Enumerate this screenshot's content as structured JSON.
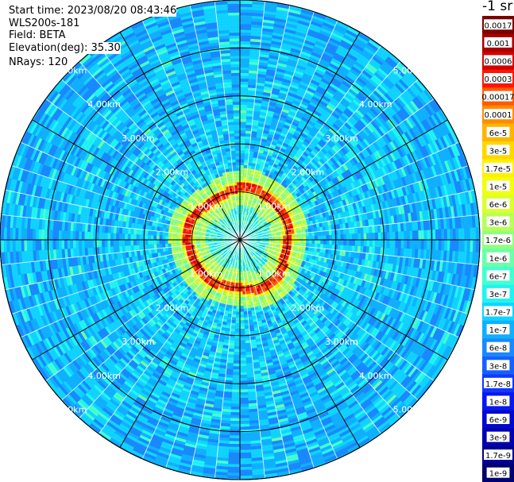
{
  "header": {
    "start_time": "Start time: 2023/08/20 08:43:46",
    "instrument": "WLS200s-181",
    "field": "Field: BETA",
    "elevation": "Elevation(deg): 35.30",
    "nrays": "NRays: 120"
  },
  "colorbar": {
    "unit_label": "-1 sr",
    "labels": [
      "0.0017",
      "0.001",
      "0.0006",
      "0.0003",
      "0.00017",
      "0.0001",
      "6e-5",
      "3e-5",
      "1.7e-5",
      "1e-5",
      "6e-6",
      "3e-6",
      "1.7e-6",
      "1e-6",
      "6e-7",
      "3e-7",
      "1.7e-7",
      "1e-7",
      "6e-8",
      "3e-8",
      "1.7e-8",
      "1e-8",
      "6e-9",
      "3e-9",
      "1.7e-9",
      "1e-9"
    ],
    "colors": [
      "#7a0000",
      "#a80000",
      "#d40000",
      "#ff1500",
      "#ff5a00",
      "#ff8c00",
      "#ffb400",
      "#ffd800",
      "#fff000",
      "#f0ff10",
      "#dcff30",
      "#b8ff58",
      "#90ff80",
      "#6affa8",
      "#44ffd0",
      "#22f4f0",
      "#10d4ff",
      "#10b0ff",
      "#1a88ff",
      "#1660ff",
      "#1038ff",
      "#0818ee",
      "#0008d0",
      "#0000b0",
      "#000090",
      "#000070"
    ]
  },
  "chart_data": {
    "type": "heatmap",
    "projection": "polar (PPI)",
    "range_rings_km": [
      1.0,
      2.0,
      3.0,
      4.0,
      5.0
    ],
    "range_labels": [
      "1.00km",
      "2.00km",
      "3.00km",
      "4.00km",
      "5.00km"
    ],
    "max_range_km": 5.0,
    "azimuth_spokes_deg": [
      0,
      30,
      60,
      90,
      120,
      150,
      180,
      210,
      240,
      270,
      300,
      330
    ],
    "n_rays": 120,
    "aerosol_layer_ring_km": 1.05,
    "value_scale": "log",
    "value_range": [
      1e-09,
      0.0017
    ]
  }
}
